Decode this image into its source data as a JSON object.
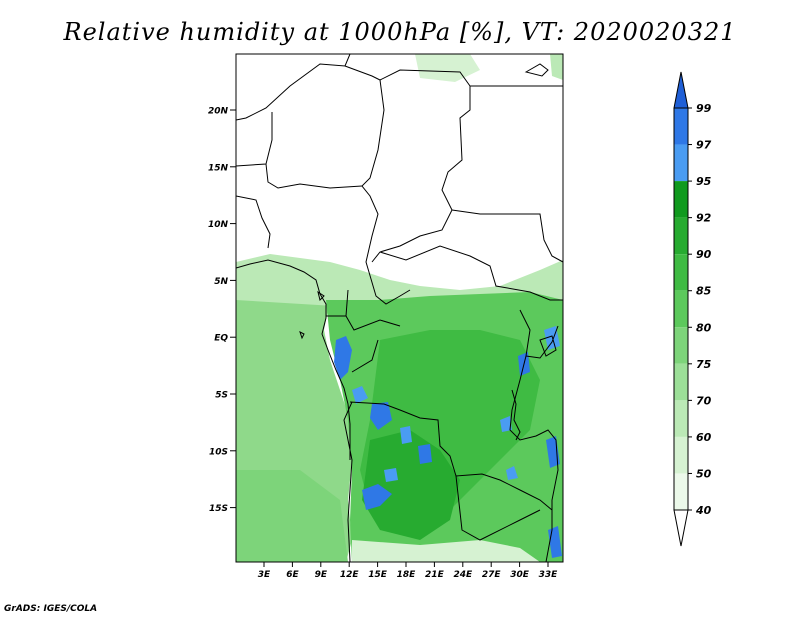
{
  "title": "Relative humidity at 1000hPa [%], VT: 2020020321",
  "credit": "GrADS: IGES/COLA",
  "map": {
    "lat_labels": [
      "20N",
      "15N",
      "10N",
      "5N",
      "EQ",
      "5S",
      "10S",
      "15S"
    ],
    "lon_labels": [
      "3E",
      "6E",
      "9E",
      "12E",
      "15E",
      "18E",
      "21E",
      "24E",
      "27E",
      "30E",
      "33E"
    ]
  },
  "colorbar": {
    "levels": [
      "99",
      "97",
      "95",
      "92",
      "90",
      "85",
      "80",
      "75",
      "70",
      "60",
      "50",
      "40"
    ],
    "colors": {
      "above_99": "#1f5fd6",
      "97_99": "#2f78e6",
      "95_97": "#4a9cf2",
      "92_95": "#109a1e",
      "90_92": "#27ab30",
      "85_90": "#3fbb43",
      "80_85": "#5cc95c",
      "75_80": "#7dd47a",
      "70_75": "#9cdf98",
      "60_70": "#bbe9b6",
      "50_60": "#d6f2d2",
      "40_50": "#ecf9ea",
      "below_40": "#ffffff"
    }
  }
}
